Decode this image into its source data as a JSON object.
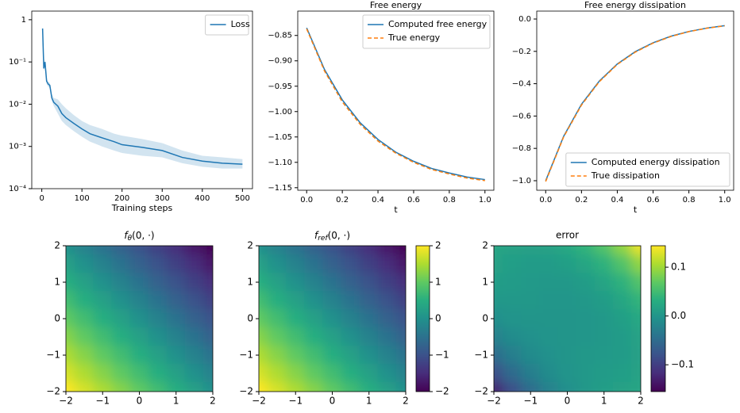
{
  "chart_data": [
    {
      "type": "line",
      "log": true,
      "xlabel": "Training steps",
      "legend": "upper right",
      "x": [
        2,
        5,
        8,
        12,
        16,
        20,
        25,
        30,
        40,
        50,
        60,
        80,
        100,
        120,
        150,
        180,
        200,
        250,
        300,
        350,
        400,
        450,
        500
      ],
      "series": [
        {
          "name": "Loss",
          "color": "#1f77b4",
          "values": [
            0.62,
            0.07,
            0.1,
            0.035,
            0.03,
            0.028,
            0.014,
            0.011,
            0.009,
            0.006,
            0.0048,
            0.0035,
            0.0026,
            0.002,
            0.0016,
            0.0013,
            0.0011,
            0.00095,
            0.0008,
            0.00055,
            0.00045,
            0.0004,
            0.00038
          ],
          "lower": [
            0.6,
            0.06,
            0.08,
            0.03,
            0.026,
            0.024,
            0.012,
            0.009,
            0.006,
            0.004,
            0.0032,
            0.0023,
            0.0017,
            0.0013,
            0.001,
            0.0008,
            0.0007,
            0.0006,
            0.00055,
            0.0004,
            0.00033,
            0.0003,
            0.0003
          ],
          "upper": [
            0.64,
            0.08,
            0.12,
            0.04,
            0.034,
            0.032,
            0.017,
            0.014,
            0.013,
            0.01,
            0.008,
            0.0055,
            0.004,
            0.0032,
            0.0026,
            0.002,
            0.0018,
            0.0015,
            0.0012,
            0.0008,
            0.0006,
            0.00055,
            0.0005
          ]
        }
      ],
      "xlim": [
        -25,
        525
      ],
      "xticks": [
        0,
        100,
        200,
        300,
        400,
        500
      ],
      "ylim": [
        0.0001,
        1.6
      ],
      "yticks": [
        1,
        {
          "value": 0.1,
          "label": "10⁻¹"
        },
        {
          "value": 0.01,
          "label": "10⁻²"
        },
        {
          "value": 0.001,
          "label": "10⁻³"
        },
        {
          "value": 0.0001,
          "label": "10⁻⁴"
        }
      ]
    },
    {
      "type": "line",
      "title": "Free energy",
      "xlabel": "t",
      "legend": "upper right",
      "x": [
        0,
        0.1,
        0.2,
        0.3,
        0.4,
        0.5,
        0.6,
        0.7,
        0.8,
        0.9,
        1
      ],
      "series": [
        {
          "name": "Computed free energy",
          "color": "#1f77b4",
          "values": [
            -0.835,
            -0.917,
            -0.977,
            -1.022,
            -1.055,
            -1.08,
            -1.098,
            -1.112,
            -1.121,
            -1.129,
            -1.134
          ]
        },
        {
          "name": "True energy",
          "color": "#ff7f0e",
          "linestyle": "dashed",
          "values": [
            -0.837,
            -0.92,
            -0.981,
            -1.025,
            -1.058,
            -1.082,
            -1.1,
            -1.114,
            -1.123,
            -1.131,
            -1.136
          ]
        }
      ],
      "xlim": [
        -0.05,
        1.05
      ],
      "xticks": [
        {
          "value": 0,
          "label": "0.0"
        },
        0.2,
        0.4,
        0.6,
        0.8,
        {
          "value": 1,
          "label": "1.0"
        }
      ],
      "ylim": [
        -1.155,
        -0.802
      ],
      "yticks": [
        {
          "value": -0.85,
          "label": "−0.85"
        },
        {
          "value": -0.9,
          "label": "−0.90"
        },
        {
          "value": -0.95,
          "label": "−0.95"
        },
        {
          "value": -1,
          "label": "−1.00"
        },
        {
          "value": -1.05,
          "label": "−1.05"
        },
        {
          "value": -1.1,
          "label": "−1.10"
        },
        {
          "value": -1.15,
          "label": "−1.15"
        }
      ]
    },
    {
      "type": "line",
      "title": "Free energy dissipation",
      "xlabel": "t",
      "legend": "lower right",
      "x": [
        0,
        0.1,
        0.2,
        0.3,
        0.4,
        0.5,
        0.6,
        0.7,
        0.8,
        0.9,
        1
      ],
      "series": [
        {
          "name": "Computed energy dissipation",
          "color": "#1f77b4",
          "values": [
            -1,
            -0.726,
            -0.527,
            -0.383,
            -0.278,
            -0.202,
            -0.147,
            -0.106,
            -0.077,
            -0.056,
            -0.041
          ]
        },
        {
          "name": "True dissipation",
          "color": "#ff7f0e",
          "linestyle": "dashed",
          "values": [
            -1.005,
            -0.73,
            -0.532,
            -0.387,
            -0.281,
            -0.205,
            -0.149,
            -0.108,
            -0.078,
            -0.057,
            -0.042
          ]
        }
      ],
      "xlim": [
        -0.05,
        1.05
      ],
      "xticks": [
        {
          "value": 0,
          "label": "0.0"
        },
        0.2,
        0.4,
        0.6,
        0.8,
        {
          "value": 1,
          "label": "1.0"
        }
      ],
      "ylim": [
        -1.059,
        0.049
      ],
      "yticks": [
        {
          "value": 0,
          "label": "0.0"
        },
        {
          "value": -0.2,
          "label": "−0.2"
        },
        {
          "value": -0.4,
          "label": "−0.4"
        },
        {
          "value": -0.6,
          "label": "−0.6"
        },
        {
          "value": -0.8,
          "label": "−0.8"
        },
        {
          "value": -1,
          "label": "−1.0"
        }
      ]
    },
    {
      "type": "heatmap",
      "title": [
        "f",
        "θ",
        "(0, ·)"
      ],
      "colormap": "viridis",
      "clim": [
        -2,
        2
      ],
      "colorbar": false,
      "x": [
        -2,
        -1.5,
        -1,
        -0.5,
        0,
        0.5,
        1,
        1.5,
        2
      ],
      "y": [
        2,
        1.5,
        1,
        0.5,
        0,
        -0.5,
        -1,
        -1.5,
        -2
      ],
      "values": [
        [
          0,
          -0.25,
          -0.5,
          -0.75,
          -1,
          -1.25,
          -1.5,
          -1.75,
          -2
        ],
        [
          0.25,
          0,
          -0.25,
          -0.5,
          -0.75,
          -1,
          -1.25,
          -1.5,
          -1.75
        ],
        [
          0.5,
          0.25,
          0,
          -0.25,
          -0.5,
          -0.75,
          -1,
          -1.25,
          -1.5
        ],
        [
          0.75,
          0.5,
          0.25,
          0,
          -0.25,
          -0.5,
          -0.75,
          -1,
          -1.25
        ],
        [
          1,
          0.75,
          0.5,
          0.25,
          0,
          -0.25,
          -0.5,
          -0.75,
          -1
        ],
        [
          1.25,
          1,
          0.75,
          0.5,
          0.25,
          0,
          -0.25,
          -0.5,
          -0.75
        ],
        [
          1.5,
          1.25,
          1,
          0.75,
          0.5,
          0.25,
          0,
          -0.25,
          -0.5
        ],
        [
          1.75,
          1.5,
          1.25,
          1,
          0.75,
          0.5,
          0.25,
          0,
          -0.25
        ],
        [
          2,
          1.75,
          1.5,
          1.25,
          1,
          0.75,
          0.5,
          0.25,
          0
        ]
      ],
      "xlim": [
        -2,
        2
      ],
      "ylim": [
        -2,
        2
      ],
      "xticks": [
        {
          "value": -2,
          "label": "−2"
        },
        {
          "value": -1,
          "label": "−1"
        },
        0,
        1,
        2
      ],
      "yticks": [
        {
          "value": -2,
          "label": "−2"
        },
        {
          "value": -1,
          "label": "−1"
        },
        0,
        1,
        2
      ]
    },
    {
      "type": "heatmap",
      "title": [
        "f",
        "ref",
        "(0, ·)"
      ],
      "colormap": "viridis",
      "clim": [
        -2,
        2
      ],
      "colorbar": true,
      "cticks": [
        {
          "value": -2,
          "label": "−2"
        },
        {
          "value": -1,
          "label": "−1"
        },
        0,
        1,
        2
      ],
      "x": [
        -2,
        -1.5,
        -1,
        -0.5,
        0,
        0.5,
        1,
        1.5,
        2
      ],
      "y": [
        2,
        1.5,
        1,
        0.5,
        0,
        -0.5,
        -1,
        -1.5,
        -2
      ],
      "values": [
        [
          0,
          -0.25,
          -0.5,
          -0.75,
          -1,
          -1.25,
          -1.5,
          -1.75,
          -2
        ],
        [
          0.25,
          0,
          -0.25,
          -0.5,
          -0.75,
          -1,
          -1.25,
          -1.5,
          -1.75
        ],
        [
          0.5,
          0.25,
          0,
          -0.25,
          -0.5,
          -0.75,
          -1,
          -1.25,
          -1.5
        ],
        [
          0.75,
          0.5,
          0.25,
          0,
          -0.25,
          -0.5,
          -0.75,
          -1,
          -1.25
        ],
        [
          1,
          0.75,
          0.5,
          0.25,
          0,
          -0.25,
          -0.5,
          -0.75,
          -1
        ],
        [
          1.25,
          1,
          0.75,
          0.5,
          0.25,
          0,
          -0.25,
          -0.5,
          -0.75
        ],
        [
          1.5,
          1.25,
          1,
          0.75,
          0.5,
          0.25,
          0,
          -0.25,
          -0.5
        ],
        [
          1.75,
          1.5,
          1.25,
          1,
          0.75,
          0.5,
          0.25,
          0,
          -0.25
        ],
        [
          2,
          1.75,
          1.5,
          1.25,
          1,
          0.75,
          0.5,
          0.25,
          0
        ]
      ],
      "xlim": [
        -2,
        2
      ],
      "ylim": [
        -2,
        2
      ],
      "xticks": [
        {
          "value": -2,
          "label": "−2"
        },
        {
          "value": -1,
          "label": "−1"
        },
        0,
        1,
        2
      ],
      "yticks": [
        {
          "value": -2,
          "label": "−2"
        },
        {
          "value": -1,
          "label": "−1"
        },
        0,
        1,
        2
      ]
    },
    {
      "type": "heatmap",
      "title": "error",
      "colormap": "viridis",
      "clim": [
        -0.155,
        0.144
      ],
      "colorbar": true,
      "cticks": [
        {
          "value": -0.1,
          "label": "−0.1"
        },
        {
          "value": 0,
          "label": "0.0"
        },
        0.1
      ],
      "x": [
        -2,
        -1.5,
        -1,
        -0.5,
        0,
        0.5,
        1,
        1.5,
        2
      ],
      "y": [
        2,
        1.5,
        1,
        0.5,
        0,
        -0.5,
        -1,
        -1.5,
        -2
      ],
      "values": [
        [
          0.02,
          0.016,
          0.014,
          0.017,
          0.024,
          0.039,
          0.061,
          0.093,
          0.135
        ],
        [
          0.015,
          0.011,
          0.008,
          0.008,
          0.012,
          0.021,
          0.036,
          0.06,
          0.093
        ],
        [
          0.01,
          0.008,
          0.005,
          0.003,
          0.004,
          0.009,
          0.019,
          0.036,
          0.061
        ],
        [
          0.003,
          0.004,
          0.003,
          0.001,
          0.001,
          0.003,
          0.009,
          0.021,
          0.039
        ],
        [
          -0.008,
          -0.002,
          0,
          0,
          0,
          0.001,
          0.004,
          0.012,
          0.024
        ],
        [
          -0.025,
          -0.012,
          -0.005,
          -0.001,
          0,
          0.001,
          0.003,
          0.008,
          0.017
        ],
        [
          -0.05,
          -0.028,
          -0.013,
          -0.005,
          0,
          0.003,
          0.005,
          0.008,
          0.014
        ],
        [
          -0.083,
          -0.051,
          -0.028,
          -0.012,
          -0.002,
          0.004,
          0.008,
          0.011,
          0.016
        ],
        [
          -0.127,
          -0.083,
          -0.05,
          -0.025,
          -0.008,
          0.003,
          0.01,
          0.015,
          0.02
        ]
      ],
      "xlim": [
        -2,
        2
      ],
      "ylim": [
        -2,
        2
      ],
      "xticks": [
        {
          "value": -2,
          "label": "−2"
        },
        {
          "value": -1,
          "label": "−1"
        },
        0,
        1,
        2
      ],
      "yticks": [
        {
          "value": -2,
          "label": "−2"
        },
        {
          "value": -1,
          "label": "−1"
        },
        0,
        1,
        2
      ]
    }
  ]
}
